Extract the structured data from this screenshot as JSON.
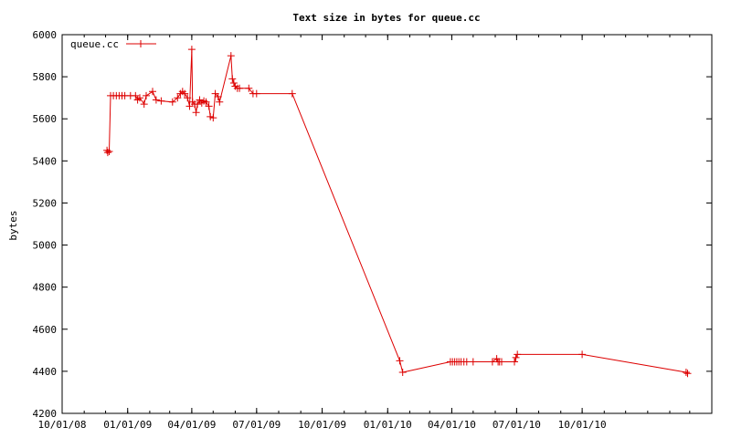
{
  "chart_data": {
    "type": "line",
    "title": "Text size in bytes for queue.cc",
    "xlabel": "",
    "ylabel": "bytes",
    "x_ticks": [
      "10/01/08",
      "01/01/09",
      "04/01/09",
      "07/01/09",
      "10/01/09",
      "01/01/10",
      "04/01/10",
      "07/01/10",
      "10/01/10"
    ],
    "y_ticks": [
      4200,
      4400,
      4600,
      4800,
      5000,
      5200,
      5400,
      5600,
      5800,
      6000
    ],
    "xlim": [
      "2008-10-01",
      "2011-04-01"
    ],
    "ylim": [
      4200,
      6000
    ],
    "grid": false,
    "legend": "top-left",
    "color": "#dd0000",
    "series": [
      {
        "name": "queue.cc",
        "points": [
          [
            "2008-12-03",
            5450
          ],
          [
            "2008-12-04",
            5440
          ],
          [
            "2008-12-06",
            5445
          ],
          [
            "2008-12-08",
            5710
          ],
          [
            "2008-12-12",
            5710
          ],
          [
            "2008-12-16",
            5710
          ],
          [
            "2008-12-20",
            5710
          ],
          [
            "2008-12-24",
            5710
          ],
          [
            "2008-12-28",
            5710
          ],
          [
            "2009-01-05",
            5710
          ],
          [
            "2009-01-12",
            5710
          ],
          [
            "2009-01-15",
            5690
          ],
          [
            "2009-01-18",
            5700
          ],
          [
            "2009-01-24",
            5670
          ],
          [
            "2009-01-27",
            5710
          ],
          [
            "2009-02-05",
            5730
          ],
          [
            "2009-02-10",
            5690
          ],
          [
            "2009-02-17",
            5685
          ],
          [
            "2009-03-05",
            5680
          ],
          [
            "2009-03-12",
            5700
          ],
          [
            "2009-03-16",
            5720
          ],
          [
            "2009-03-19",
            5730
          ],
          [
            "2009-03-22",
            5720
          ],
          [
            "2009-03-26",
            5700
          ],
          [
            "2009-03-29",
            5660
          ],
          [
            "2009-04-01",
            5930
          ],
          [
            "2009-04-02",
            5680
          ],
          [
            "2009-04-05",
            5670
          ],
          [
            "2009-04-07",
            5630
          ],
          [
            "2009-04-09",
            5670
          ],
          [
            "2009-04-12",
            5690
          ],
          [
            "2009-04-15",
            5675
          ],
          [
            "2009-04-18",
            5685
          ],
          [
            "2009-04-21",
            5680
          ],
          [
            "2009-04-25",
            5660
          ],
          [
            "2009-04-27",
            5610
          ],
          [
            "2009-05-01",
            5605
          ],
          [
            "2009-05-04",
            5720
          ],
          [
            "2009-05-08",
            5705
          ],
          [
            "2009-05-10",
            5680
          ],
          [
            "2009-05-26",
            5900
          ],
          [
            "2009-05-28",
            5790
          ],
          [
            "2009-05-30",
            5770
          ],
          [
            "2009-06-01",
            5755
          ],
          [
            "2009-06-04",
            5745
          ],
          [
            "2009-06-07",
            5745
          ],
          [
            "2009-06-20",
            5745
          ],
          [
            "2009-06-26",
            5720
          ],
          [
            "2009-07-01",
            5720
          ],
          [
            "2009-08-20",
            5720
          ],
          [
            "2010-01-18",
            4450
          ],
          [
            "2010-01-22",
            4395
          ],
          [
            "2010-03-30",
            4445
          ],
          [
            "2010-04-02",
            4445
          ],
          [
            "2010-04-05",
            4445
          ],
          [
            "2010-04-08",
            4445
          ],
          [
            "2010-04-11",
            4445
          ],
          [
            "2010-04-14",
            4445
          ],
          [
            "2010-04-18",
            4445
          ],
          [
            "2010-04-22",
            4445
          ],
          [
            "2010-05-01",
            4445
          ],
          [
            "2010-05-28",
            4445
          ],
          [
            "2010-06-03",
            4460
          ],
          [
            "2010-06-05",
            4445
          ],
          [
            "2010-06-07",
            4445
          ],
          [
            "2010-06-10",
            4445
          ],
          [
            "2010-06-28",
            4445
          ],
          [
            "2010-06-30",
            4465
          ],
          [
            "2010-07-02",
            4480
          ],
          [
            "2010-10-01",
            4480
          ],
          [
            "2011-02-24",
            4395
          ],
          [
            "2011-02-26",
            4390
          ]
        ]
      }
    ]
  }
}
